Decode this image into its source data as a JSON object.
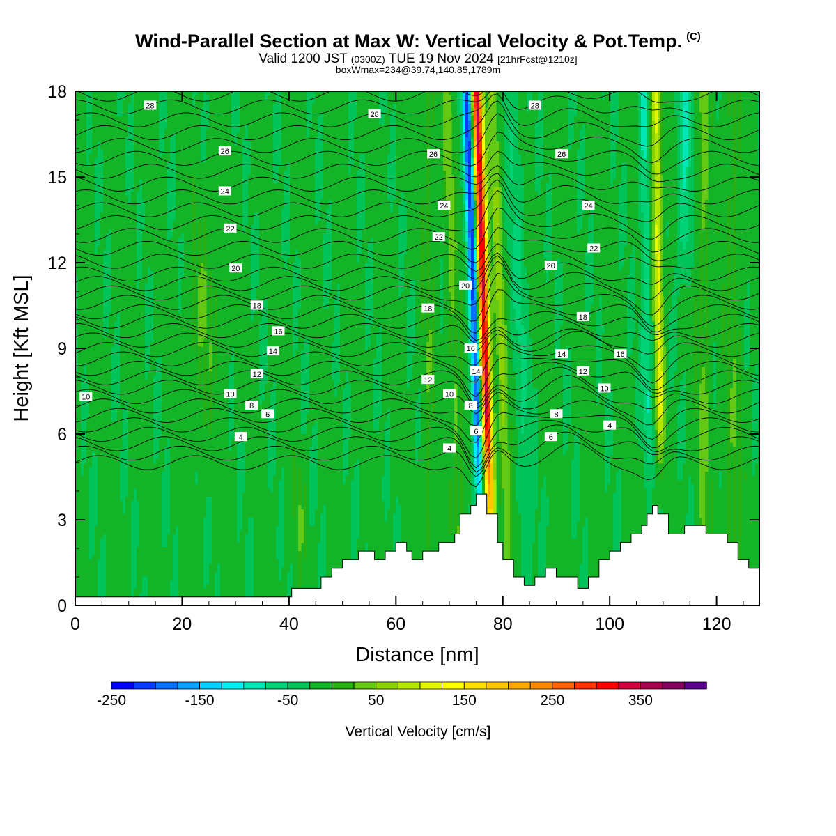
{
  "header": {
    "title": "Wind-Parallel Section at Max W: Vertical Velocity & Pot.Temp.",
    "copyright": "(C)",
    "valid_prefix": "Valid 1200 JST",
    "valid_utc": "(0300Z)",
    "valid_date": "TUE 19 Nov 2024",
    "forecast": "[21hrFcst@1210z]",
    "boxwmax": "boxWmax=234@39.74,140.85,1789m"
  },
  "chart_data": {
    "type": "heatmap",
    "xlabel": "Distance [nm]",
    "ylabel": "Height [Kft MSL]",
    "xlim": [
      0,
      128
    ],
    "ylim": [
      0,
      18
    ],
    "xticks": [
      "0",
      "20",
      "40",
      "60",
      "80",
      "100",
      "120"
    ],
    "xtick_values": [
      0,
      20,
      40,
      60,
      80,
      100,
      120
    ],
    "yticks": [
      "0",
      "3",
      "6",
      "9",
      "12",
      "15",
      "18"
    ],
    "ytick_values": [
      0,
      3,
      6,
      9,
      12,
      15,
      18
    ],
    "colorbar": {
      "label": "Vertical Velocity [cm/s]",
      "tick_labels": [
        "-250",
        "-150",
        "-50",
        "50",
        "150",
        "250",
        "350"
      ],
      "tick_values": [
        -250,
        -150,
        -50,
        50,
        150,
        250,
        350
      ],
      "range": [
        -250,
        450
      ],
      "step": 25,
      "colors": [
        "#0000ff",
        "#0a3cff",
        "#0a6eff",
        "#0aa0ff",
        "#00d2ff",
        "#00f0f0",
        "#00e6b4",
        "#00d278",
        "#00c35a",
        "#14b428",
        "#28af14",
        "#64c814",
        "#8cd200",
        "#b4e600",
        "#e6f500",
        "#ffff00",
        "#ffe100",
        "#ffc800",
        "#ffaa00",
        "#ff8c00",
        "#ff6400",
        "#ff3200",
        "#ff0000",
        "#d2003c",
        "#aa0050",
        "#82005a",
        "#5a008c"
      ]
    },
    "terrain_profile": {
      "x": [
        0,
        40,
        40.5,
        46,
        48,
        50,
        53,
        56,
        58,
        60,
        62,
        63,
        65,
        67,
        68,
        71,
        72,
        74,
        75,
        76,
        77,
        79,
        80,
        82,
        84,
        86,
        88,
        90,
        94,
        96,
        98,
        100,
        102,
        104,
        106,
        107,
        108,
        109,
        111,
        114,
        116,
        118,
        120,
        122,
        124,
        126,
        128
      ],
      "height_kft": [
        0.3,
        0.3,
        0.6,
        1.0,
        1.3,
        1.6,
        1.9,
        1.6,
        1.9,
        2.2,
        1.9,
        1.6,
        1.9,
        1.9,
        2.2,
        2.5,
        3.2,
        3.5,
        3.9,
        3.9,
        3.2,
        2.2,
        1.6,
        1.0,
        0.7,
        1.0,
        1.3,
        1.0,
        0.6,
        1.0,
        1.6,
        1.9,
        2.2,
        2.5,
        2.8,
        3.2,
        3.5,
        3.2,
        2.5,
        2.8,
        2.8,
        2.5,
        2.5,
        2.2,
        1.6,
        1.3,
        1.3
      ]
    },
    "theta_contour_labels": [
      {
        "value": "28",
        "x": 14,
        "y": 17.5
      },
      {
        "value": "28",
        "x": 56,
        "y": 17.2
      },
      {
        "value": "28",
        "x": 86,
        "y": 17.5
      },
      {
        "value": "26",
        "x": 28,
        "y": 15.9
      },
      {
        "value": "26",
        "x": 67,
        "y": 15.8
      },
      {
        "value": "26",
        "x": 91,
        "y": 15.8
      },
      {
        "value": "24",
        "x": 28,
        "y": 14.5
      },
      {
        "value": "24",
        "x": 69,
        "y": 14.0
      },
      {
        "value": "24",
        "x": 96,
        "y": 14.0
      },
      {
        "value": "22",
        "x": 29,
        "y": 13.2
      },
      {
        "value": "22",
        "x": 68,
        "y": 12.9
      },
      {
        "value": "22",
        "x": 97,
        "y": 12.5
      },
      {
        "value": "20",
        "x": 30,
        "y": 11.8
      },
      {
        "value": "20",
        "x": 73,
        "y": 11.2
      },
      {
        "value": "20",
        "x": 89,
        "y": 11.9
      },
      {
        "value": "18",
        "x": 34,
        "y": 10.5
      },
      {
        "value": "18",
        "x": 66,
        "y": 10.4
      },
      {
        "value": "18",
        "x": 95,
        "y": 10.1
      },
      {
        "value": "16",
        "x": 38,
        "y": 9.6
      },
      {
        "value": "16",
        "x": 74,
        "y": 9.0
      },
      {
        "value": "16",
        "x": 102,
        "y": 8.8
      },
      {
        "value": "14",
        "x": 37,
        "y": 8.9
      },
      {
        "value": "14",
        "x": 75,
        "y": 8.2
      },
      {
        "value": "14",
        "x": 91,
        "y": 8.8
      },
      {
        "value": "12",
        "x": 34,
        "y": 8.1
      },
      {
        "value": "12",
        "x": 66,
        "y": 7.9
      },
      {
        "value": "12",
        "x": 95,
        "y": 8.2
      },
      {
        "value": "10",
        "x": 2,
        "y": 7.3
      },
      {
        "value": "10",
        "x": 29,
        "y": 7.4
      },
      {
        "value": "10",
        "x": 70,
        "y": 7.4
      },
      {
        "value": "10",
        "x": 99,
        "y": 7.6
      },
      {
        "value": "8",
        "x": 33,
        "y": 7.0
      },
      {
        "value": "8",
        "x": 74,
        "y": 7.0
      },
      {
        "value": "8",
        "x": 90,
        "y": 6.7
      },
      {
        "value": "6",
        "x": 36,
        "y": 6.7
      },
      {
        "value": "6",
        "x": 75,
        "y": 6.1
      },
      {
        "value": "6",
        "x": 89,
        "y": 5.9
      },
      {
        "value": "4",
        "x": 31,
        "y": 5.9
      },
      {
        "value": "4",
        "x": 70,
        "y": 5.5
      },
      {
        "value": "4",
        "x": 100,
        "y": 6.3
      }
    ]
  }
}
